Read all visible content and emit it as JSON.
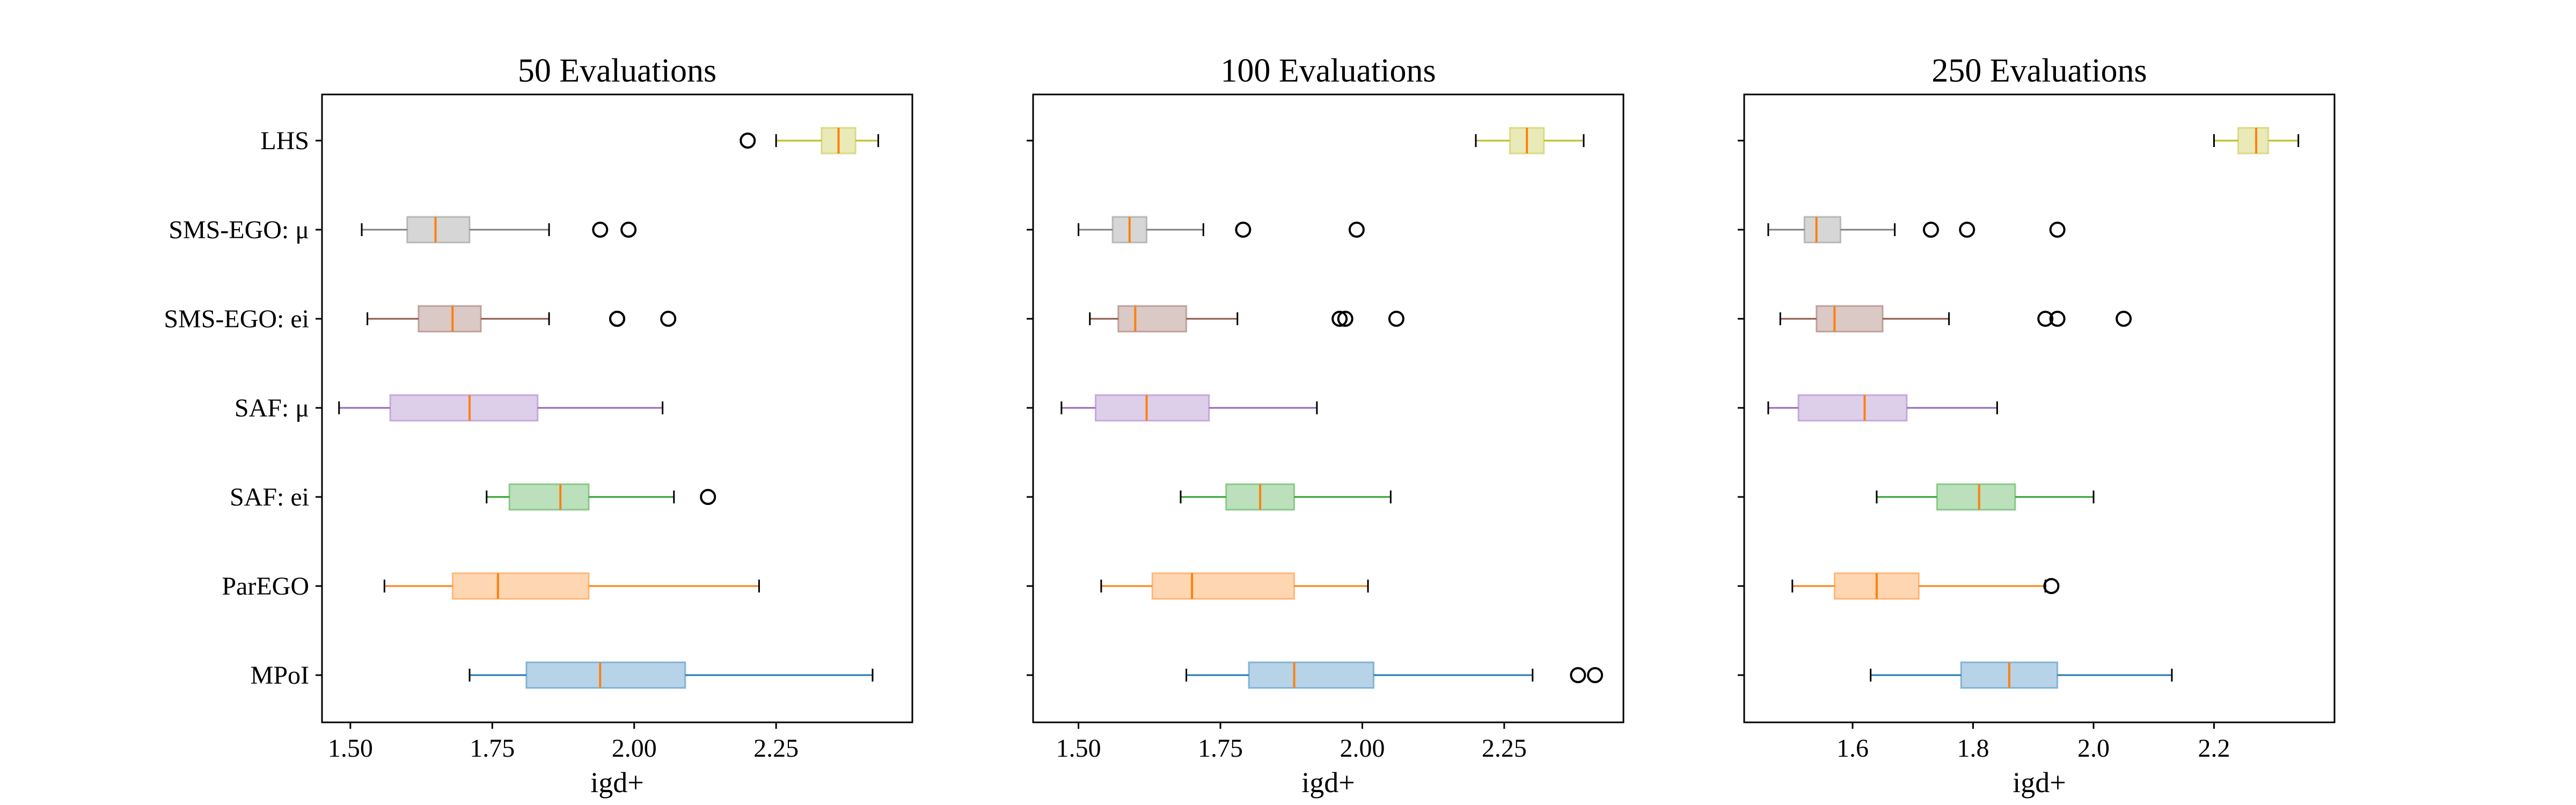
{
  "categories": [
    "MPoI",
    "ParEGO",
    "SAF: ei",
    "SAF: μ",
    "SMS-EGO: ei",
    "SMS-EGO: μ",
    "LHS"
  ],
  "colors": {
    "MPoI": "#1f77b4",
    "ParEGO": "#ff7f0e",
    "SAF: ei": "#2ca02c",
    "SAF: μ": "#9467bd",
    "SMS-EGO: ei": "#8c564b",
    "SMS-EGO: μ": "#7f7f7f",
    "LHS": "#bcbd22",
    "median": "#ff7f0e",
    "frame": "#000000"
  },
  "chart_data": [
    {
      "type": "boxplot",
      "orientation": "horizontal",
      "title": "50 Evaluations",
      "xlabel": "igd+",
      "xlim": [
        1.45,
        2.49
      ],
      "xticks": [
        1.5,
        1.75,
        2.0,
        2.25
      ],
      "xtick_labels": [
        "1.50",
        "1.75",
        "2.00",
        "2.25"
      ],
      "show_category_labels": true,
      "boxes": [
        {
          "label": "MPoI",
          "whisker_low": 1.71,
          "q1": 1.81,
          "median": 1.94,
          "q3": 2.09,
          "whisker_high": 2.42,
          "outliers": []
        },
        {
          "label": "ParEGO",
          "whisker_low": 1.56,
          "q1": 1.68,
          "median": 1.76,
          "q3": 1.92,
          "whisker_high": 2.22,
          "outliers": []
        },
        {
          "label": "SAF: ei",
          "whisker_low": 1.74,
          "q1": 1.78,
          "median": 1.87,
          "q3": 1.92,
          "whisker_high": 2.07,
          "outliers": [
            2.13
          ]
        },
        {
          "label": "SAF: μ",
          "whisker_low": 1.48,
          "q1": 1.57,
          "median": 1.71,
          "q3": 1.83,
          "whisker_high": 2.05,
          "outliers": []
        },
        {
          "label": "SMS-EGO: ei",
          "whisker_low": 1.53,
          "q1": 1.62,
          "median": 1.68,
          "q3": 1.73,
          "whisker_high": 1.85,
          "outliers": [
            1.97,
            1.97,
            2.06
          ]
        },
        {
          "label": "SMS-EGO: μ",
          "whisker_low": 1.52,
          "q1": 1.6,
          "median": 1.65,
          "q3": 1.71,
          "whisker_high": 1.85,
          "outliers": [
            1.94,
            1.99
          ]
        },
        {
          "label": "LHS",
          "whisker_low": 2.25,
          "q1": 2.33,
          "median": 2.36,
          "q3": 2.39,
          "whisker_high": 2.43,
          "outliers": [
            2.2
          ]
        }
      ]
    },
    {
      "type": "boxplot",
      "orientation": "horizontal",
      "title": "100 Evaluations",
      "xlabel": "igd+",
      "xlim": [
        1.42,
        2.46
      ],
      "xticks": [
        1.5,
        1.75,
        2.0,
        2.25
      ],
      "xtick_labels": [
        "1.50",
        "1.75",
        "2.00",
        "2.25"
      ],
      "show_category_labels": false,
      "boxes": [
        {
          "label": "MPoI",
          "whisker_low": 1.69,
          "q1": 1.8,
          "median": 1.88,
          "q3": 2.02,
          "whisker_high": 2.3,
          "outliers": [
            2.38,
            2.41
          ]
        },
        {
          "label": "ParEGO",
          "whisker_low": 1.54,
          "q1": 1.63,
          "median": 1.7,
          "q3": 1.88,
          "whisker_high": 2.01,
          "outliers": []
        },
        {
          "label": "SAF: ei",
          "whisker_low": 1.68,
          "q1": 1.76,
          "median": 1.82,
          "q3": 1.88,
          "whisker_high": 2.05,
          "outliers": []
        },
        {
          "label": "SAF: μ",
          "whisker_low": 1.47,
          "q1": 1.53,
          "median": 1.62,
          "q3": 1.73,
          "whisker_high": 1.92,
          "outliers": []
        },
        {
          "label": "SMS-EGO: ei",
          "whisker_low": 1.52,
          "q1": 1.57,
          "median": 1.6,
          "q3": 1.69,
          "whisker_high": 1.78,
          "outliers": [
            1.96,
            1.97,
            2.06
          ]
        },
        {
          "label": "SMS-EGO: μ",
          "whisker_low": 1.5,
          "q1": 1.56,
          "median": 1.59,
          "q3": 1.62,
          "whisker_high": 1.72,
          "outliers": [
            1.79,
            1.99
          ]
        },
        {
          "label": "LHS",
          "whisker_low": 2.2,
          "q1": 2.26,
          "median": 2.29,
          "q3": 2.32,
          "whisker_high": 2.39,
          "outliers": []
        }
      ]
    },
    {
      "type": "boxplot",
      "orientation": "horizontal",
      "title": "250 Evaluations",
      "xlabel": "igd+",
      "xlim": [
        1.42,
        2.4
      ],
      "xticks": [
        1.6,
        1.8,
        2.0,
        2.2
      ],
      "xtick_labels": [
        "1.6",
        "1.8",
        "2.0",
        "2.2"
      ],
      "show_category_labels": false,
      "boxes": [
        {
          "label": "MPoI",
          "whisker_low": 1.63,
          "q1": 1.78,
          "median": 1.86,
          "q3": 1.94,
          "whisker_high": 2.13,
          "outliers": []
        },
        {
          "label": "ParEGO",
          "whisker_low": 1.5,
          "q1": 1.57,
          "median": 1.64,
          "q3": 1.71,
          "whisker_high": 1.92,
          "outliers": [
            1.93
          ]
        },
        {
          "label": "SAF: ei",
          "whisker_low": 1.64,
          "q1": 1.74,
          "median": 1.81,
          "q3": 1.87,
          "whisker_high": 2.0,
          "outliers": []
        },
        {
          "label": "SAF: μ",
          "whisker_low": 1.46,
          "q1": 1.51,
          "median": 1.62,
          "q3": 1.69,
          "whisker_high": 1.84,
          "outliers": []
        },
        {
          "label": "SMS-EGO: ei",
          "whisker_low": 1.48,
          "q1": 1.54,
          "median": 1.57,
          "q3": 1.65,
          "whisker_high": 1.76,
          "outliers": [
            1.92,
            1.94,
            2.05
          ]
        },
        {
          "label": "SMS-EGO: μ",
          "whisker_low": 1.46,
          "q1": 1.52,
          "median": 1.54,
          "q3": 1.58,
          "whisker_high": 1.67,
          "outliers": [
            1.73,
            1.79,
            1.94
          ]
        },
        {
          "label": "LHS",
          "whisker_low": 2.2,
          "q1": 2.24,
          "median": 2.27,
          "q3": 2.29,
          "whisker_high": 2.34,
          "outliers": []
        }
      ]
    }
  ]
}
